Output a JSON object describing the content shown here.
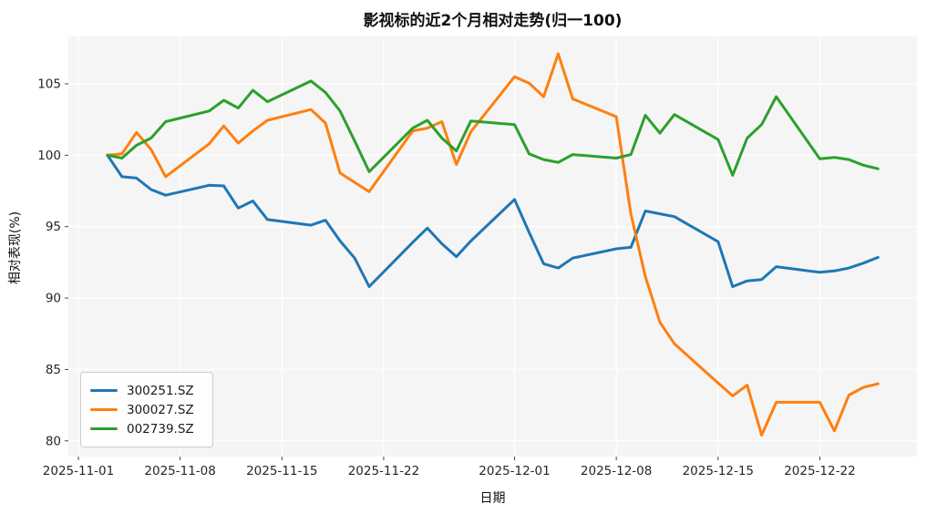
{
  "title": "影视标的近2个月相对走势(归一100)",
  "axes": {
    "xlabel": "日期",
    "ylabel": "相对表现(%)"
  },
  "legend": {
    "entries": [
      {
        "label": "300251.SZ",
        "color": "#1f77b4"
      },
      {
        "label": "300027.SZ",
        "color": "#ff7f0e"
      },
      {
        "label": "002739.SZ",
        "color": "#2ca02c"
      }
    ]
  },
  "chart_data": {
    "type": "line",
    "title": "影视标的近2个月相对走势(归一100)",
    "xlabel": "日期",
    "ylabel": "相对表现(%)",
    "grid": true,
    "legend_position": "lower left",
    "plot_bg": "#f5f5f6",
    "grid_color": "#ffffff",
    "ylim": [
      79.0,
      108.5
    ],
    "yticks": [
      80,
      85,
      90,
      95,
      100,
      105
    ],
    "xticks": [
      "2025-11-01",
      "2025-11-08",
      "2025-11-15",
      "2025-11-22",
      "2025-12-01",
      "2025-12-08",
      "2025-12-15",
      "2025-12-22"
    ],
    "x": [
      "2025-11-03",
      "2025-11-04",
      "2025-11-05",
      "2025-11-06",
      "2025-11-07",
      "2025-11-10",
      "2025-11-11",
      "2025-11-12",
      "2025-11-13",
      "2025-11-14",
      "2025-11-17",
      "2025-11-18",
      "2025-11-19",
      "2025-11-20",
      "2025-11-21",
      "2025-11-24",
      "2025-11-25",
      "2025-11-26",
      "2025-11-27",
      "2025-11-28",
      "2025-12-01",
      "2025-12-02",
      "2025-12-03",
      "2025-12-04",
      "2025-12-05",
      "2025-12-08",
      "2025-12-09",
      "2025-12-10",
      "2025-12-11",
      "2025-12-12",
      "2025-12-15",
      "2025-12-16",
      "2025-12-17",
      "2025-12-18",
      "2025-12-19",
      "2025-12-22",
      "2025-12-23",
      "2025-12-24",
      "2025-12-25",
      "2025-12-26"
    ],
    "series": [
      {
        "name": "300251.SZ",
        "color": "#1f77b4",
        "values": [
          100.0,
          98.5,
          98.4,
          97.6,
          97.2,
          97.9,
          97.85,
          96.3,
          96.8,
          95.5,
          95.1,
          95.45,
          94.0,
          92.8,
          90.8,
          93.9,
          94.9,
          93.8,
          92.9,
          94.0,
          96.9,
          94.6,
          92.4,
          92.1,
          92.8,
          93.45,
          93.55,
          96.1,
          95.9,
          95.7,
          93.95,
          90.8,
          91.2,
          91.3,
          92.2,
          91.8,
          91.9,
          92.1,
          92.45,
          92.85
        ]
      },
      {
        "name": "300027.SZ",
        "color": "#ff7f0e",
        "values": [
          100.0,
          100.1,
          101.6,
          100.4,
          98.5,
          100.8,
          102.05,
          100.85,
          101.7,
          102.45,
          103.2,
          102.25,
          98.75,
          98.1,
          97.45,
          101.7,
          101.9,
          102.35,
          99.35,
          101.65,
          105.5,
          105.05,
          104.1,
          107.1,
          103.95,
          102.7,
          95.9,
          91.5,
          88.3,
          86.8,
          84.05,
          83.15,
          83.9,
          80.4,
          82.7,
          82.7,
          80.7,
          83.2,
          83.75,
          84.0
        ]
      },
      {
        "name": "002739.SZ",
        "color": "#2ca02c",
        "values": [
          100.0,
          99.8,
          100.7,
          101.2,
          102.35,
          103.1,
          103.85,
          103.3,
          104.55,
          103.75,
          105.2,
          104.4,
          103.1,
          101.0,
          98.85,
          101.9,
          102.45,
          101.2,
          100.3,
          102.4,
          102.15,
          100.1,
          99.7,
          99.5,
          100.05,
          99.8,
          100.05,
          102.8,
          101.55,
          102.85,
          101.1,
          98.6,
          101.2,
          102.15,
          104.1,
          99.75,
          99.85,
          99.7,
          99.3,
          99.05
        ]
      }
    ]
  }
}
